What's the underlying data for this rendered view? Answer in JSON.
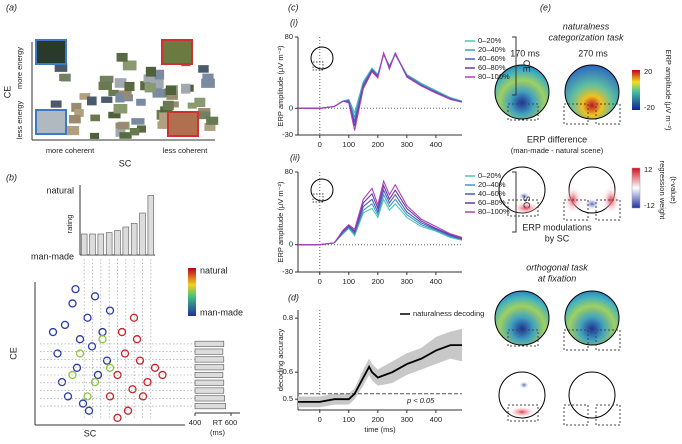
{
  "panel_labels": [
    "(a)",
    "(b)",
    "(c)",
    "(d)",
    "(e)"
  ],
  "panel_a": {
    "y_top": "more energy",
    "y_bottom": "less energy",
    "y_label": "CE",
    "x_left": "more coherent",
    "x_right": "less coherent",
    "x_label": "SC"
  },
  "panel_e": {
    "task1": [
      "naturalness",
      "categorization task"
    ],
    "times": [
      "170 ms",
      "270 ms"
    ],
    "colorbar1": {
      "ticks": [
        20,
        -20
      ],
      "label": "ERP amplitude (μV m⁻²)"
    },
    "diff_title": [
      "ERP difference",
      "(man-made - natural scene)"
    ],
    "colorbar2": {
      "ticks": [
        12,
        -12
      ],
      "label": [
        "regression weight",
        "(t-value)"
      ]
    },
    "mod_title": [
      "ERP modulations",
      "by SC"
    ],
    "task2": [
      "orthogonal task",
      "at fixation"
    ]
  },
  "chart_data": [
    {
      "type": "bar",
      "ylabel": "rating",
      "ytop_label": "natural",
      "ybottom_label": "man-made",
      "ylim": [
        0,
        1
      ],
      "color": "#dcdcdc",
      "values": [
        0.3,
        0.3,
        0.3,
        0.32,
        0.35,
        0.4,
        0.45,
        0.6,
        0.85
      ]
    },
    {
      "type": "scatter",
      "xlabel": "SC",
      "ylabel": "CE",
      "xlim": [
        0,
        1
      ],
      "ylim": [
        0,
        1
      ],
      "colorbar_labels": [
        "natural",
        "man-made"
      ],
      "series": [
        {
          "color": "#2a3aa8",
          "x": [
            0.15,
            0.2,
            0.25,
            0.3,
            0.35,
            0.4,
            0.18,
            0.28,
            0.38,
            0.45,
            0.22,
            0.32,
            0.42,
            0.5,
            0.27,
            0.12,
            0.36,
            0.48
          ],
          "y": [
            0.5,
            0.7,
            0.85,
            0.6,
            0.75,
            0.9,
            0.3,
            0.4,
            0.55,
            0.65,
            0.2,
            0.15,
            0.35,
            0.8,
            0.95,
            0.65,
            0.1,
            0.45
          ]
        },
        {
          "color": "#8cc63a",
          "x": [
            0.3,
            0.4,
            0.45,
            0.35,
            0.5,
            0.25
          ],
          "y": [
            0.5,
            0.3,
            0.6,
            0.2,
            0.4,
            0.35
          ]
        },
        {
          "color": "#c8202a",
          "x": [
            0.5,
            0.55,
            0.6,
            0.65,
            0.7,
            0.75,
            0.8,
            0.58,
            0.68,
            0.62,
            0.72,
            0.55,
            0.85,
            0.66
          ],
          "y": [
            0.2,
            0.35,
            0.5,
            0.25,
            0.45,
            0.3,
            0.4,
            0.65,
            0.6,
            0.1,
            0.2,
            0.05,
            0.35,
            0.75
          ]
        }
      ]
    },
    {
      "type": "hbar",
      "xlabel": "RT",
      "xunit": "(ms)",
      "xlim": [
        400,
        650
      ],
      "xticks": [
        400,
        600
      ],
      "color": "#dcdcdc",
      "values": [
        560,
        555,
        560,
        560,
        555,
        560,
        560,
        565,
        570
      ]
    },
    {
      "type": "line",
      "label": "(i)",
      "side_label": "CE",
      "ylabel": "ERP amplitude (μV m⁻²)",
      "xlim": [
        -75,
        490
      ],
      "ylim": [
        -30,
        80
      ],
      "yticks": [
        -30,
        0,
        80
      ],
      "xticks": [
        0,
        100,
        200,
        300,
        400
      ],
      "x": [
        -100,
        0,
        50,
        80,
        100,
        120,
        150,
        180,
        200,
        220,
        240,
        260,
        300,
        350,
        400,
        450,
        490
      ],
      "series": [
        {
          "name": "0–20%",
          "color": "#4fc4b0",
          "values": [
            0,
            0,
            2,
            8,
            10,
            -5,
            30,
            45,
            38,
            60,
            48,
            60,
            38,
            28,
            20,
            12,
            8
          ]
        },
        {
          "name": "20–40%",
          "color": "#3b9cc8",
          "values": [
            0,
            0,
            2,
            8,
            9,
            -10,
            28,
            44,
            37,
            61,
            47,
            61,
            37,
            27,
            19,
            11,
            8
          ]
        },
        {
          "name": "40–60%",
          "color": "#4a5ec0",
          "values": [
            0,
            0,
            2,
            8,
            8,
            -15,
            26,
            43,
            36,
            61,
            46,
            61,
            36,
            26,
            18,
            11,
            7
          ]
        },
        {
          "name": "60–80%",
          "color": "#6a3aa0",
          "values": [
            0,
            0,
            2,
            8,
            7,
            -20,
            24,
            42,
            35,
            62,
            45,
            62,
            36,
            25,
            18,
            10,
            7
          ]
        },
        {
          "name": "80–100%",
          "color": "#b040b8",
          "values": [
            0,
            0,
            2,
            8,
            6,
            -25,
            22,
            41,
            34,
            62,
            44,
            62,
            35,
            25,
            17,
            10,
            7
          ]
        }
      ]
    },
    {
      "type": "line",
      "label": "(ii)",
      "side_label": "SC",
      "ylabel": "ERP amplitude (μV m⁻²)",
      "xlim": [
        -75,
        490
      ],
      "ylim": [
        -30,
        80
      ],
      "yticks": [
        -30,
        0,
        80
      ],
      "xticks": [
        0,
        100,
        200,
        300,
        400
      ],
      "x": [
        -100,
        0,
        50,
        80,
        100,
        120,
        150,
        180,
        200,
        220,
        240,
        260,
        300,
        350,
        400,
        450,
        490
      ],
      "series": [
        {
          "name": "0–20%",
          "color": "#4fc4b0",
          "values": [
            0,
            0,
            2,
            12,
            18,
            10,
            35,
            40,
            30,
            50,
            38,
            45,
            30,
            20,
            15,
            8,
            5
          ]
        },
        {
          "name": "20–40%",
          "color": "#3b9cc8",
          "values": [
            0,
            0,
            2,
            13,
            19,
            12,
            38,
            45,
            33,
            55,
            42,
            50,
            33,
            22,
            16,
            9,
            6
          ]
        },
        {
          "name": "40–60%",
          "color": "#4a5ec0",
          "values": [
            0,
            0,
            2,
            14,
            20,
            13,
            42,
            50,
            36,
            60,
            46,
            55,
            36,
            24,
            17,
            10,
            6
          ]
        },
        {
          "name": "60–80%",
          "color": "#6a3aa0",
          "values": [
            0,
            0,
            2,
            15,
            21,
            15,
            46,
            56,
            40,
            65,
            50,
            60,
            40,
            26,
            18,
            11,
            7
          ]
        },
        {
          "name": "80–100%",
          "color": "#b040b8",
          "values": [
            0,
            0,
            2,
            16,
            22,
            17,
            50,
            62,
            44,
            70,
            55,
            66,
            43,
            28,
            20,
            12,
            8
          ]
        }
      ]
    },
    {
      "type": "line",
      "ylabel": "decoding accuracy",
      "xlabel": "time (ms)",
      "xlim": [
        -75,
        490
      ],
      "ylim": [
        0.46,
        0.83
      ],
      "yticks": [
        0.5,
        0.6,
        0.8
      ],
      "xticks": [
        0,
        100,
        200,
        300,
        400
      ],
      "x": [
        -100,
        0,
        50,
        100,
        120,
        150,
        160,
        170,
        180,
        200,
        250,
        300,
        350,
        400,
        450,
        490
      ],
      "series": [
        {
          "name": "naturalness decoding",
          "color": "#000000",
          "values": [
            0.49,
            0.49,
            0.5,
            0.5,
            0.52,
            0.58,
            0.6,
            0.62,
            0.6,
            0.58,
            0.6,
            0.63,
            0.65,
            0.68,
            0.7,
            0.7
          ]
        }
      ],
      "band_low": [
        0.47,
        0.47,
        0.48,
        0.48,
        0.5,
        0.55,
        0.57,
        0.59,
        0.57,
        0.55,
        0.56,
        0.59,
        0.61,
        0.63,
        0.65,
        0.64
      ],
      "band_high": [
        0.51,
        0.51,
        0.52,
        0.52,
        0.54,
        0.61,
        0.63,
        0.65,
        0.63,
        0.61,
        0.64,
        0.67,
        0.69,
        0.73,
        0.75,
        0.76
      ],
      "threshold": 0.52,
      "threshold_label": "p < 0.05"
    }
  ]
}
